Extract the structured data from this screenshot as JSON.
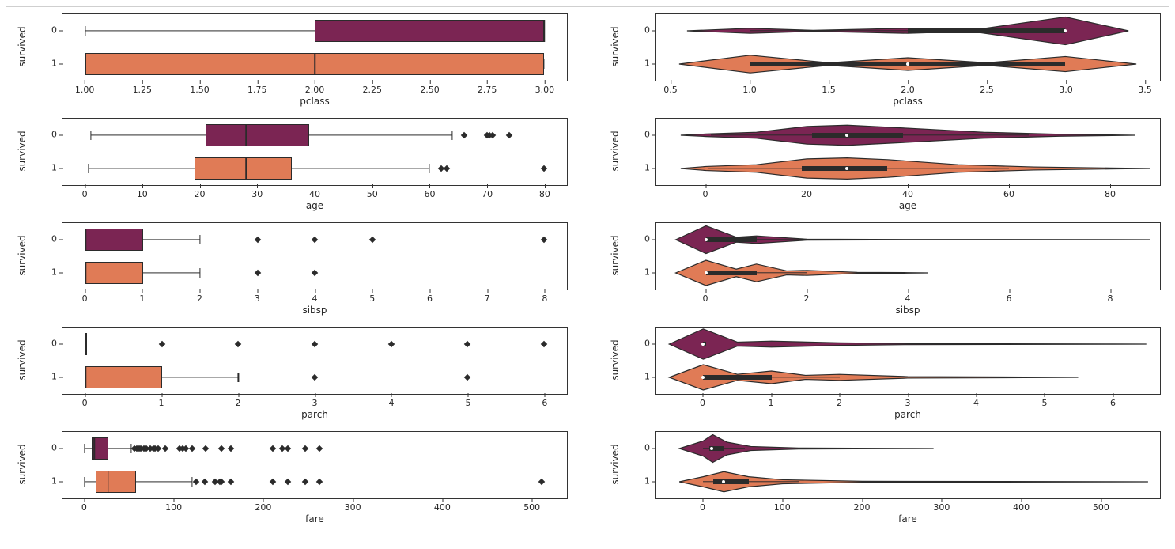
{
  "meta": {
    "ylabel": "survived",
    "ycats": [
      "0",
      "1"
    ],
    "colors": {
      "cat0": "#7b2553",
      "cat1": "#e07b56"
    },
    "stroke": "#2b2b2b",
    "background_color": "#ffffff",
    "label_fontsize": 12,
    "tick_fontsize": 11,
    "font_family": "DejaVu Sans"
  },
  "rows": [
    {
      "var": "pclass",
      "box": {
        "xlim": [
          0.9,
          3.1
        ],
        "xticks": [
          1.0,
          1.25,
          1.5,
          1.75,
          2.0,
          2.25,
          2.5,
          2.75,
          3.0
        ],
        "xticklabels": [
          "1.00",
          "1.25",
          "1.50",
          "1.75",
          "2.00",
          "2.25",
          "2.50",
          "2.75",
          "3.00"
        ],
        "series": {
          "0": {
            "q1": 2,
            "med": 3,
            "q3": 3,
            "wlo": 1,
            "whi": 3,
            "outliers": []
          },
          "1": {
            "q1": 1,
            "med": 2,
            "q3": 3,
            "wlo": 1,
            "whi": 3,
            "outliers": []
          }
        }
      },
      "violin": {
        "xlim": [
          0.4,
          3.6
        ],
        "xticks": [
          0.5,
          1.0,
          1.5,
          2.0,
          2.5,
          3.0,
          3.5
        ],
        "xticklabels": [
          "0.5",
          "1.0",
          "1.5",
          "2.0",
          "2.5",
          "3.0",
          "3.5"
        ],
        "series": {
          "0": {
            "kde": [
              [
                0.6,
                0
              ],
              [
                1.0,
                0.1
              ],
              [
                1.4,
                0.02
              ],
              [
                2.0,
                0.1
              ],
              [
                2.4,
                0.02
              ],
              [
                3.0,
                0.55
              ],
              [
                3.4,
                0
              ]
            ],
            "iq1": 2,
            "imed": 3,
            "iq3": 3,
            "iwlo": 1,
            "iwhi": 3
          },
          "1": {
            "kde": [
              [
                0.55,
                0
              ],
              [
                1.0,
                0.35
              ],
              [
                1.5,
                0.05
              ],
              [
                2.0,
                0.25
              ],
              [
                2.5,
                0.05
              ],
              [
                3.0,
                0.3
              ],
              [
                3.45,
                0
              ]
            ],
            "iq1": 1,
            "imed": 2,
            "iq3": 3,
            "iwlo": 1,
            "iwhi": 3
          }
        }
      }
    },
    {
      "var": "age",
      "box": {
        "xlim": [
          -4,
          84
        ],
        "xticks": [
          0,
          10,
          20,
          30,
          40,
          50,
          60,
          70,
          80
        ],
        "xticklabels": [
          "0",
          "10",
          "20",
          "30",
          "40",
          "50",
          "60",
          "70",
          "80"
        ],
        "series": {
          "0": {
            "q1": 21,
            "med": 28,
            "q3": 39,
            "wlo": 1,
            "whi": 64,
            "outliers": [
              66,
              70,
              70.5,
              71,
              74
            ]
          },
          "1": {
            "q1": 19,
            "med": 28,
            "q3": 36,
            "wlo": 0.5,
            "whi": 60,
            "outliers": [
              62,
              63,
              80
            ]
          }
        }
      },
      "violin": {
        "xlim": [
          -10,
          90
        ],
        "xticks": [
          0,
          20,
          40,
          60,
          80
        ],
        "xticklabels": [
          "0",
          "20",
          "40",
          "60",
          "80"
        ],
        "series": {
          "0": {
            "kde": [
              [
                -5,
                0
              ],
              [
                0,
                0.05
              ],
              [
                10,
                0.12
              ],
              [
                20,
                0.35
              ],
              [
                28,
                0.4
              ],
              [
                40,
                0.28
              ],
              [
                55,
                0.12
              ],
              [
                70,
                0.04
              ],
              [
                85,
                0
              ]
            ],
            "iq1": 21,
            "imed": 28,
            "iq3": 39,
            "iwlo": 1,
            "iwhi": 64
          },
          "1": {
            "kde": [
              [
                -5,
                0
              ],
              [
                0,
                0.08
              ],
              [
                10,
                0.15
              ],
              [
                20,
                0.38
              ],
              [
                28,
                0.42
              ],
              [
                36,
                0.35
              ],
              [
                50,
                0.15
              ],
              [
                65,
                0.06
              ],
              [
                80,
                0.02
              ],
              [
                88,
                0
              ]
            ],
            "iq1": 19,
            "imed": 28,
            "iq3": 36,
            "iwlo": 0.5,
            "iwhi": 60
          }
        }
      }
    },
    {
      "var": "sibsp",
      "box": {
        "xlim": [
          -0.4,
          8.4
        ],
        "xticks": [
          0,
          1,
          2,
          3,
          4,
          5,
          6,
          7,
          8
        ],
        "xticklabels": [
          "0",
          "1",
          "2",
          "3",
          "4",
          "5",
          "6",
          "7",
          "8"
        ],
        "series": {
          "0": {
            "q1": 0,
            "med": 0,
            "q3": 1,
            "wlo": 0,
            "whi": 2,
            "outliers": [
              3,
              4,
              5,
              8
            ]
          },
          "1": {
            "q1": 0,
            "med": 0,
            "q3": 1,
            "wlo": 0,
            "whi": 2,
            "outliers": [
              3,
              4
            ]
          }
        }
      },
      "violin": {
        "xlim": [
          -1,
          9
        ],
        "xticks": [
          0,
          2,
          4,
          6,
          8
        ],
        "xticklabels": [
          "0",
          "2",
          "4",
          "6",
          "8"
        ],
        "series": {
          "0": {
            "kde": [
              [
                -0.6,
                0
              ],
              [
                0,
                0.55
              ],
              [
                0.6,
                0.1
              ],
              [
                1,
                0.15
              ],
              [
                2,
                0.02
              ],
              [
                4,
                0.01
              ],
              [
                8,
                0.005
              ],
              [
                8.8,
                0
              ]
            ],
            "iq1": 0,
            "imed": 0,
            "iq3": 1,
            "iwlo": 0,
            "iwhi": 2
          },
          "1": {
            "kde": [
              [
                -0.6,
                0
              ],
              [
                0,
                0.5
              ],
              [
                0.6,
                0.15
              ],
              [
                1,
                0.35
              ],
              [
                1.6,
                0.08
              ],
              [
                2,
                0.1
              ],
              [
                3,
                0.02
              ],
              [
                4,
                0.01
              ],
              [
                4.4,
                0
              ]
            ],
            "iq1": 0,
            "imed": 0,
            "iq3": 1,
            "iwlo": 0,
            "iwhi": 2
          }
        }
      }
    },
    {
      "var": "parch",
      "box": {
        "xlim": [
          -0.3,
          6.3
        ],
        "xticks": [
          0,
          1,
          2,
          3,
          4,
          5,
          6
        ],
        "xticklabels": [
          "0",
          "1",
          "2",
          "3",
          "4",
          "5",
          "6"
        ],
        "series": {
          "0": {
            "q1": 0,
            "med": 0,
            "q3": 0,
            "wlo": 0,
            "whi": 0,
            "outliers": [
              1,
              2,
              3,
              4,
              5,
              6
            ]
          },
          "1": {
            "q1": 0,
            "med": 0,
            "q3": 1,
            "wlo": 0,
            "whi": 2,
            "outliers": [
              3,
              5
            ]
          }
        }
      },
      "violin": {
        "xlim": [
          -0.7,
          6.7
        ],
        "xticks": [
          0,
          1,
          2,
          3,
          4,
          5,
          6
        ],
        "xticklabels": [
          "0",
          "1",
          "2",
          "3",
          "4",
          "5",
          "6"
        ],
        "series": {
          "0": {
            "kde": [
              [
                -0.5,
                0
              ],
              [
                0,
                0.6
              ],
              [
                0.5,
                0.08
              ],
              [
                1,
                0.12
              ],
              [
                2,
                0.05
              ],
              [
                3,
                0.02
              ],
              [
                6,
                0.005
              ],
              [
                6.5,
                0
              ]
            ],
            "iq1": 0,
            "imed": 0,
            "iq3": 0,
            "iwlo": 0,
            "iwhi": 0
          },
          "1": {
            "kde": [
              [
                -0.5,
                0
              ],
              [
                0,
                0.5
              ],
              [
                0.5,
                0.12
              ],
              [
                1,
                0.25
              ],
              [
                1.5,
                0.08
              ],
              [
                2,
                0.12
              ],
              [
                3,
                0.03
              ],
              [
                5,
                0.01
              ],
              [
                5.5,
                0
              ]
            ],
            "iq1": 0,
            "imed": 0,
            "iq3": 1,
            "iwlo": 0,
            "iwhi": 2
          }
        }
      }
    },
    {
      "var": "fare",
      "box": {
        "xlim": [
          -25,
          540
        ],
        "xticks": [
          0,
          100,
          200,
          300,
          400,
          500
        ],
        "xticklabels": [
          "0",
          "100",
          "200",
          "300",
          "400",
          "500"
        ],
        "series": {
          "0": {
            "q1": 7.8,
            "med": 10.5,
            "q3": 26,
            "wlo": 0,
            "whi": 52,
            "outliers": [
              56,
              58,
              61,
              63,
              66,
              69,
              73,
              77,
              79,
              82,
              90,
              106,
              110,
              113,
              120,
              135,
              153,
              164,
              211,
              221,
              227,
              247,
              263
            ]
          },
          "1": {
            "q1": 12.5,
            "med": 26,
            "q3": 57,
            "wlo": 0,
            "whi": 120,
            "outliers": [
              125,
              134,
              146,
              151,
              153,
              164,
              211,
              227,
              247,
              263,
              512
            ]
          }
        }
      },
      "violin": {
        "xlim": [
          -60,
          575
        ],
        "xticks": [
          0,
          100,
          200,
          300,
          400,
          500
        ],
        "xticklabels": [
          "0",
          "100",
          "200",
          "300",
          "400",
          "500"
        ],
        "series": {
          "0": {
            "kde": [
              [
                -30,
                0
              ],
              [
                0,
                0.3
              ],
              [
                12,
                0.55
              ],
              [
                30,
                0.25
              ],
              [
                60,
                0.08
              ],
              [
                120,
                0.02
              ],
              [
                263,
                0.005
              ],
              [
                290,
                0
              ]
            ],
            "iq1": 7.8,
            "imed": 10.5,
            "iq3": 26,
            "iwlo": 0,
            "iwhi": 52
          },
          "1": {
            "kde": [
              [
                -30,
                0
              ],
              [
                0,
                0.2
              ],
              [
                26,
                0.4
              ],
              [
                57,
                0.2
              ],
              [
                100,
                0.08
              ],
              [
                200,
                0.02
              ],
              [
                512,
                0.005
              ],
              [
                560,
                0
              ]
            ],
            "iq1": 12.5,
            "imed": 26,
            "iq3": 57,
            "iwlo": 0,
            "iwhi": 120
          }
        }
      }
    }
  ]
}
